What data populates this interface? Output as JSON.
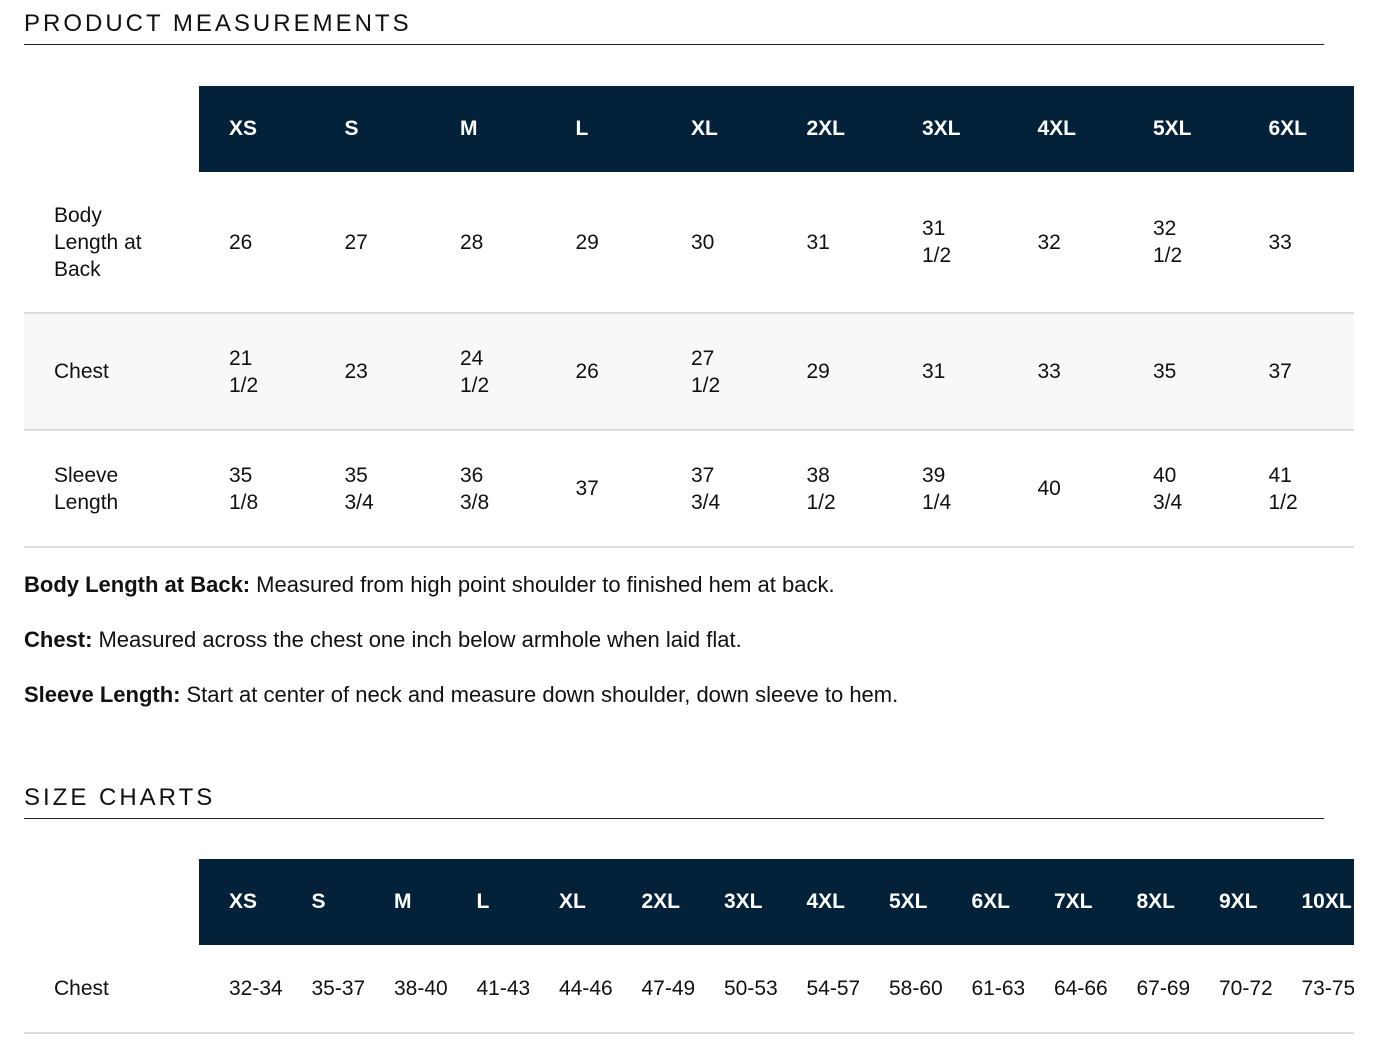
{
  "measurements": {
    "title": "PRODUCT MEASUREMENTS",
    "header": [
      "XS",
      "S",
      "M",
      "L",
      "XL",
      "2XL",
      "3XL",
      "4XL",
      "5XL",
      "6XL"
    ],
    "rows": [
      {
        "label": "Body Length at Back",
        "cells": [
          "26",
          "27",
          "28",
          "29",
          "30",
          "31",
          "31 1/2",
          "32",
          "32 1/2",
          "33"
        ]
      },
      {
        "label": "Chest",
        "cells": [
          "21 1/2",
          "23",
          "24 1/2",
          "26",
          "27 1/2",
          "29",
          "31",
          "33",
          "35",
          "37"
        ]
      },
      {
        "label": "Sleeve Length",
        "cells": [
          "35 1/8",
          "35 3/4",
          "36 3/8",
          "37",
          "37 3/4",
          "38 1/2",
          "39 1/4",
          "40",
          "40 3/4",
          "41 1/2"
        ]
      }
    ],
    "notes": [
      {
        "term": "Body Length at Back:",
        "text": "Measured from high point shoulder to finished hem at back."
      },
      {
        "term": "Chest:",
        "text": "Measured across the chest one inch below armhole when laid flat."
      },
      {
        "term": "Sleeve Length:",
        "text": "Start at center of neck and measure down shoulder, down sleeve to hem."
      }
    ]
  },
  "size_charts": {
    "title": "SIZE CHARTS",
    "header": [
      "XS",
      "S",
      "M",
      "L",
      "XL",
      "2XL",
      "3XL",
      "4XL",
      "5XL",
      "6XL",
      "7XL",
      "8XL",
      "9XL",
      "10XL"
    ],
    "rows": [
      {
        "label": "Chest",
        "cells": [
          "32-34",
          "35-37",
          "38-40",
          "41-43",
          "44-46",
          "47-49",
          "50-53",
          "54-57",
          "58-60",
          "61-63",
          "64-66",
          "67-69",
          "70-72",
          "73-75"
        ]
      }
    ]
  }
}
